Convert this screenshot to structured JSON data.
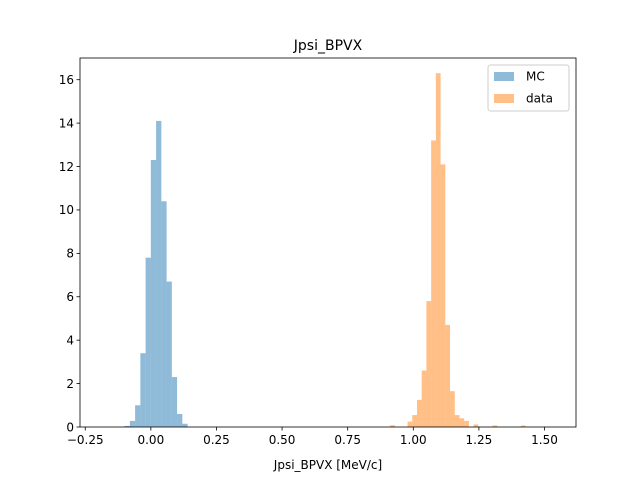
{
  "chart_data": {
    "type": "bar",
    "title": "Jpsi_BPVX",
    "xlabel": "Jpsi_BPVX [MeV/c]",
    "ylabel": "",
    "xlim": [
      -0.27,
      1.62
    ],
    "ylim": [
      0,
      17
    ],
    "xticks": [
      -0.25,
      0.0,
      0.25,
      0.5,
      0.75,
      1.0,
      1.25,
      1.5
    ],
    "xtick_labels": [
      "−0.25",
      "0.00",
      "0.25",
      "0.50",
      "0.75",
      "1.00",
      "1.25",
      "1.50"
    ],
    "yticks": [
      0,
      2,
      4,
      6,
      8,
      10,
      12,
      14,
      16
    ],
    "ytick_labels": [
      "0",
      "2",
      "4",
      "6",
      "8",
      "10",
      "12",
      "14",
      "16"
    ],
    "grid": false,
    "legend": {
      "position": "top-right"
    },
    "series": [
      {
        "name": "MC",
        "color": "#1f77b4",
        "alpha": 0.5,
        "bins": [
          {
            "x0": -0.1,
            "x1": -0.08,
            "y": 0.05
          },
          {
            "x0": -0.08,
            "x1": -0.06,
            "y": 0.28
          },
          {
            "x0": -0.06,
            "x1": -0.04,
            "y": 1.0
          },
          {
            "x0": -0.04,
            "x1": -0.02,
            "y": 3.4
          },
          {
            "x0": -0.02,
            "x1": 0.0,
            "y": 7.8
          },
          {
            "x0": 0.0,
            "x1": 0.02,
            "y": 12.3
          },
          {
            "x0": 0.02,
            "x1": 0.04,
            "y": 14.1
          },
          {
            "x0": 0.04,
            "x1": 0.06,
            "y": 10.4
          },
          {
            "x0": 0.06,
            "x1": 0.08,
            "y": 6.7
          },
          {
            "x0": 0.08,
            "x1": 0.1,
            "y": 2.3
          },
          {
            "x0": 0.1,
            "x1": 0.12,
            "y": 0.6
          },
          {
            "x0": 0.12,
            "x1": 0.14,
            "y": 0.15
          }
        ]
      },
      {
        "name": "data",
        "color": "#ff7f0e",
        "alpha": 0.5,
        "bins": [
          {
            "x0": 0.912,
            "x1": 0.93,
            "y": 0.08
          },
          {
            "x0": 0.978,
            "x1": 0.996,
            "y": 0.25
          },
          {
            "x0": 0.996,
            "x1": 1.014,
            "y": 0.55
          },
          {
            "x0": 1.014,
            "x1": 1.032,
            "y": 1.25
          },
          {
            "x0": 1.032,
            "x1": 1.05,
            "y": 2.6
          },
          {
            "x0": 1.05,
            "x1": 1.068,
            "y": 5.8
          },
          {
            "x0": 1.068,
            "x1": 1.086,
            "y": 13.2
          },
          {
            "x0": 1.086,
            "x1": 1.104,
            "y": 16.3
          },
          {
            "x0": 1.104,
            "x1": 1.122,
            "y": 12.1
          },
          {
            "x0": 1.122,
            "x1": 1.14,
            "y": 4.7
          },
          {
            "x0": 1.14,
            "x1": 1.158,
            "y": 1.65
          },
          {
            "x0": 1.158,
            "x1": 1.176,
            "y": 0.55
          },
          {
            "x0": 1.176,
            "x1": 1.194,
            "y": 0.4
          },
          {
            "x0": 1.194,
            "x1": 1.212,
            "y": 0.28
          },
          {
            "x0": 1.23,
            "x1": 1.248,
            "y": 0.12
          },
          {
            "x0": 1.302,
            "x1": 1.32,
            "y": 0.07
          },
          {
            "x0": 1.41,
            "x1": 1.428,
            "y": 0.07
          }
        ]
      }
    ]
  }
}
